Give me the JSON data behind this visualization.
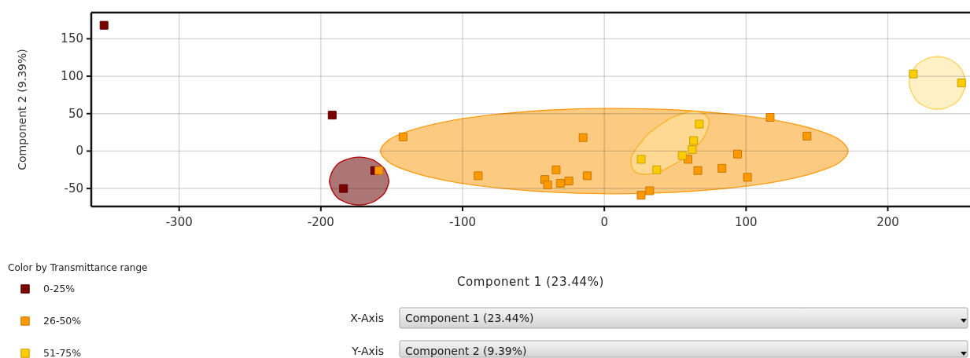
{
  "chart_data": {
    "type": "scatter",
    "xlabel": "Component 1 (23.44%)",
    "ylabel": "Component 2 (9.39%)",
    "legend_title": "Color by Transmittance range",
    "annotations": [
      "X-Axis",
      "Component 1 (23.44%)",
      "Y-Axis",
      "Component 2 (9.39%)"
    ],
    "xlim": [
      -362,
      258
    ],
    "ylim": [
      -74,
      185
    ],
    "xticks": [
      -300,
      -200,
      -100,
      0,
      100,
      200
    ],
    "yticks": [
      -50,
      0,
      50,
      100,
      150
    ],
    "grid": true,
    "legend": "bottom left",
    "marker": "square",
    "series": [
      {
        "type": "area",
        "marker": "none",
        "color": "#ad7676",
        "x": [
          -152,
          -153,
          -155,
          -159,
          -163,
          -168,
          -173,
          -178,
          -183,
          -188,
          -191,
          -193,
          -194,
          -193,
          -191,
          -188,
          -183,
          -178,
          -173,
          -168,
          -163,
          -159,
          -155,
          -153
        ],
        "values": [
          -40,
          -32,
          -24,
          -17,
          -12,
          -9,
          -8,
          -9,
          -12,
          -17,
          -24,
          -32,
          -40,
          -48,
          -56,
          -63,
          -68,
          -71,
          -72,
          -71,
          -68,
          -63,
          -56,
          -48
        ]
      },
      {
        "type": "area",
        "marker": "none",
        "color": "#fdca82",
        "x": [
          172,
          166,
          150,
          124,
          90,
          50,
          7,
          -36,
          -76,
          -110,
          -136,
          -152,
          -158,
          -152,
          -136,
          -110,
          -76,
          -36,
          7,
          50,
          90,
          124,
          150,
          166
        ],
        "values": [
          0,
          15,
          28,
          40,
          49,
          55,
          57,
          55,
          49,
          40,
          28,
          15,
          0,
          -15,
          -28,
          -40,
          -49,
          -55,
          -57,
          -55,
          -49,
          -40,
          -28,
          -15
        ]
      },
      {
        "type": "area",
        "marker": "none",
        "color": "#fdd994",
        "x": [
          72,
          74,
          73,
          71,
          67,
          61,
          55,
          48,
          41,
          34,
          28,
          23,
          20,
          19,
          19,
          22,
          26,
          31,
          38,
          45,
          52,
          59,
          64,
          69
        ],
        "values": [
          47,
          40,
          31,
          21,
          10,
          -1,
          -11,
          -19,
          -26,
          -30,
          -31,
          -29,
          -24,
          -18,
          -9,
          2,
          12,
          23,
          33,
          42,
          48,
          52,
          53,
          51
        ]
      },
      {
        "type": "area",
        "marker": "none",
        "color": "#fff0c6",
        "x": [
          255,
          254,
          252,
          249,
          245,
          240,
          235,
          230,
          225,
          221,
          218,
          216,
          215,
          216,
          218,
          221,
          225,
          230,
          235,
          240,
          245,
          249,
          252,
          254
        ],
        "values": [
          91,
          100,
          109,
          116,
          121,
          125,
          126,
          125,
          121,
          116,
          109,
          100,
          91,
          82,
          74,
          66,
          61,
          57,
          56,
          57,
          61,
          66,
          74,
          82
        ]
      },
      {
        "name": "0-25%",
        "color": "#7b0000",
        "x": [
          -353,
          -192,
          -184,
          -162
        ],
        "values": [
          168,
          48,
          -50,
          -26
        ]
      },
      {
        "name": "26-50%",
        "color": "#ff9900",
        "x": [
          -159,
          -142,
          -89,
          -42,
          -40,
          -34,
          -31,
          -25,
          -15,
          -12,
          26,
          32,
          59,
          66,
          83,
          94,
          101,
          117,
          143
        ],
        "values": [
          -26,
          19,
          -33,
          -38,
          -45,
          -25,
          -43,
          -40,
          18,
          -33,
          -59,
          -53,
          -11,
          -26,
          -23,
          -4,
          -35,
          45,
          20
        ]
      },
      {
        "name": "51-75%",
        "color": "#ffcc00",
        "x": [
          26,
          37,
          55,
          62,
          63,
          67,
          218,
          252
        ],
        "values": [
          -11,
          -25,
          -6,
          2,
          14,
          36,
          103,
          91
        ]
      }
    ]
  }
}
